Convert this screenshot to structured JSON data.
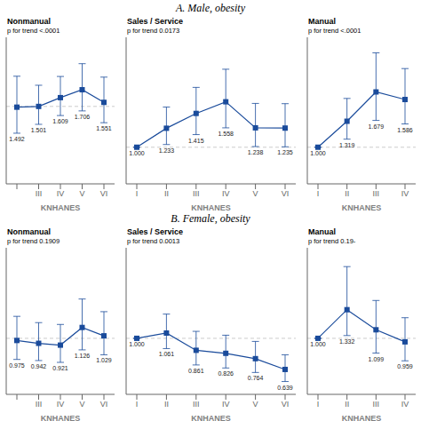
{
  "chart_data": [
    {
      "type": "line",
      "subtitle": "A. Male, obesity",
      "title": "Nonmanual",
      "annotations": [
        "p for trend <.0001"
      ],
      "xlabel": "KNHANES",
      "categories": [
        null,
        "III",
        "IV",
        "V",
        "VI"
      ],
      "values": [
        1.492,
        1.501,
        1.609,
        1.706,
        1.551
      ],
      "value_labels": [
        "1.492",
        "1.501",
        "1.609",
        "1.706",
        "1.551"
      ],
      "error_low": [
        0.32,
        0.22,
        0.22,
        0.26,
        0.25
      ],
      "error_high": [
        0.38,
        0.26,
        0.26,
        0.32,
        0.31
      ],
      "reference_y": 1.501,
      "ylim": [
        0.55,
        2.35
      ],
      "color": "#1a4b9b",
      "marker": "square",
      "data_labels": true,
      "tick_labels": "x"
    },
    {
      "type": "line",
      "title": "Sales / Service",
      "annotations": [
        "p for trend 0.0173"
      ],
      "xlabel": "KNHANES",
      "categories": [
        "I",
        "II",
        "III",
        "IV",
        "V",
        "VI"
      ],
      "values": [
        1.0,
        1.233,
        1.415,
        1.558,
        1.238,
        1.235
      ],
      "value_labels": [
        "1.000",
        "1.233",
        "1.415",
        "1.558",
        "1.238",
        "1.235"
      ],
      "error_low": [
        0.0,
        0.2,
        0.26,
        0.32,
        0.23,
        0.23
      ],
      "error_high": [
        0.0,
        0.26,
        0.32,
        0.4,
        0.3,
        0.3
      ],
      "reference_y": 1.0,
      "ylim": [
        0.55,
        2.35
      ],
      "color": "#1a4b9b",
      "marker": "square",
      "data_labels": true,
      "tick_labels": "x"
    },
    {
      "type": "line",
      "title": "Manual",
      "annotations": [
        "p for trend <.0001"
      ],
      "xlabel": "KNHANES",
      "categories": [
        "I",
        "II",
        "III",
        "IV"
      ],
      "values": [
        1.0,
        1.319,
        1.679,
        1.586
      ],
      "value_labels": [
        "1.000",
        "1.319",
        "1.679",
        "1.586"
      ],
      "error_low": [
        0.0,
        0.22,
        0.35,
        0.3
      ],
      "error_high": [
        0.0,
        0.28,
        0.48,
        0.38
      ],
      "reference_y": 1.0,
      "ylim": [
        0.55,
        2.35
      ],
      "color": "#1a4b9b",
      "marker": "square",
      "data_labels": true,
      "tick_labels": "x"
    },
    {
      "type": "line",
      "subtitle": "B. Female, obesity",
      "title": "Nonmanual",
      "annotations": [
        "p for trend 0.1909"
      ],
      "xlabel": "KNHANES",
      "categories": [
        null,
        "III",
        "IV",
        "V",
        "VI"
      ],
      "values": [
        0.975,
        0.942,
        0.921,
        1.126,
        1.029
      ],
      "value_labels": [
        "0.975",
        "0.942",
        "0.921",
        "1.126",
        "1.029"
      ],
      "error_low": [
        0.22,
        0.2,
        0.2,
        0.26,
        0.22
      ],
      "error_high": [
        0.28,
        0.24,
        0.24,
        0.33,
        0.28
      ],
      "reference_y": 1.0,
      "ylim": [
        0.35,
        2.05
      ],
      "color": "#1a4b9b",
      "marker": "square",
      "data_labels": true,
      "tick_labels": "x"
    },
    {
      "type": "line",
      "title": "Sales / Service",
      "annotations": [
        "p for trend 0.0013"
      ],
      "xlabel": "KNHANES",
      "categories": [
        "I",
        "II",
        "III",
        "IV",
        "V",
        "VI"
      ],
      "values": [
        1.0,
        1.061,
        0.861,
        0.826,
        0.764,
        0.639
      ],
      "value_labels": [
        "1.000",
        "1.061",
        "0.861",
        "0.826",
        "0.764",
        "0.639"
      ],
      "error_low": [
        0.0,
        0.18,
        0.17,
        0.17,
        0.16,
        0.14
      ],
      "error_high": [
        0.0,
        0.22,
        0.22,
        0.21,
        0.2,
        0.17
      ],
      "reference_y": 1.0,
      "ylim": [
        0.35,
        2.05
      ],
      "color": "#1a4b9b",
      "marker": "square",
      "data_labels": true,
      "tick_labels": "x"
    },
    {
      "type": "line",
      "title": "Manual",
      "annotations": [
        "p for trend 0.19-"
      ],
      "xlabel": "KNHANES",
      "categories": [
        "I",
        "II",
        "III",
        "IV"
      ],
      "values": [
        1.0,
        1.332,
        1.099,
        0.959
      ],
      "value_labels": [
        "1.000",
        "1.332",
        "1.099",
        "0.959"
      ],
      "error_low": [
        0.0,
        0.3,
        0.27,
        0.22
      ],
      "error_high": [
        0.0,
        0.5,
        0.34,
        0.28
      ],
      "reference_y": 1.0,
      "ylim": [
        0.35,
        2.05
      ],
      "color": "#1a4b9b",
      "marker": "square",
      "data_labels": true,
      "tick_labels": "x"
    }
  ]
}
